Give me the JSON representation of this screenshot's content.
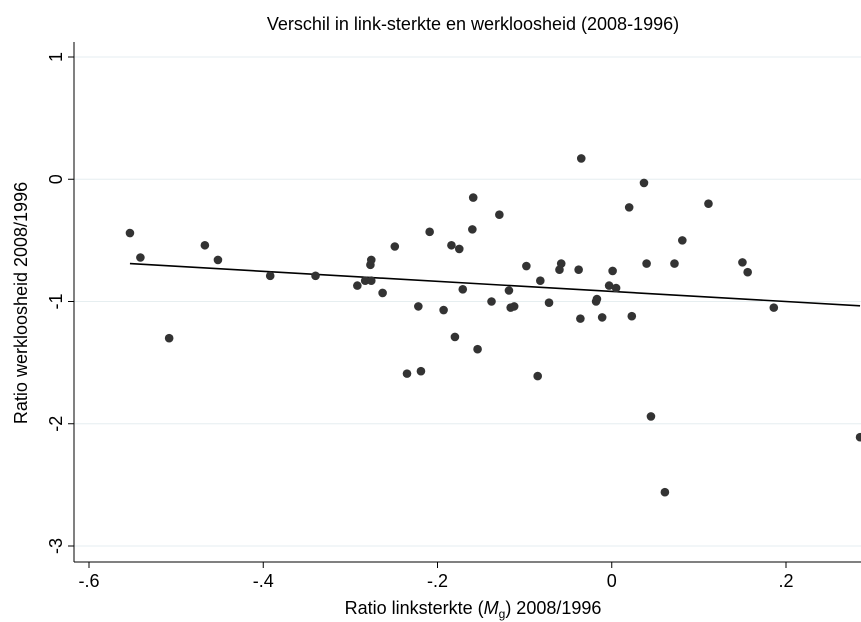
{
  "chart_data": {
    "type": "scatter",
    "title": "Verschil in link-sterkte en werkloosheid (2008-1996)",
    "xlabel_prefix": "Ratio linksterkte (",
    "xlabel_var": "M",
    "xlabel_sub": "g",
    "xlabel_suffix": ") 2008/1996",
    "ylabel": "Ratio werkloosheid 2008/1996",
    "xlim": [
      -0.6,
      0.285
    ],
    "ylim": [
      -3.0,
      1.0
    ],
    "xticks": [
      -0.6,
      -0.4,
      -0.2,
      0,
      0.2
    ],
    "xtick_labels": [
      "-.6",
      "-.4",
      "-.2",
      "0",
      ".2"
    ],
    "yticks": [
      1,
      0,
      -1,
      -2,
      -3
    ],
    "ytick_labels": [
      "1",
      "0",
      "-1",
      "-2",
      "-3"
    ],
    "grid": true,
    "legend": "none",
    "point_color": "#333333",
    "line_color": "#000000",
    "fit_line": {
      "x": [
        -0.553,
        0.285
      ],
      "y": [
        -0.69,
        -1.035
      ]
    },
    "points": [
      {
        "x": -0.553,
        "y": -0.44
      },
      {
        "x": -0.541,
        "y": -0.64
      },
      {
        "x": -0.508,
        "y": -1.3
      },
      {
        "x": -0.467,
        "y": -0.54
      },
      {
        "x": -0.452,
        "y": -0.66
      },
      {
        "x": -0.392,
        "y": -0.79
      },
      {
        "x": -0.34,
        "y": -0.79
      },
      {
        "x": -0.292,
        "y": -0.87
      },
      {
        "x": -0.283,
        "y": -0.83
      },
      {
        "x": -0.277,
        "y": -0.7
      },
      {
        "x": -0.276,
        "y": -0.66
      },
      {
        "x": -0.276,
        "y": -0.83
      },
      {
        "x": -0.263,
        "y": -0.93
      },
      {
        "x": -0.249,
        "y": -0.55
      },
      {
        "x": -0.235,
        "y": -1.59
      },
      {
        "x": -0.222,
        "y": -1.04
      },
      {
        "x": -0.219,
        "y": -1.57
      },
      {
        "x": -0.209,
        "y": -0.43
      },
      {
        "x": -0.193,
        "y": -1.07
      },
      {
        "x": -0.184,
        "y": -0.54
      },
      {
        "x": -0.18,
        "y": -1.29
      },
      {
        "x": -0.175,
        "y": -0.57
      },
      {
        "x": -0.171,
        "y": -0.9
      },
      {
        "x": -0.16,
        "y": -0.41
      },
      {
        "x": -0.159,
        "y": -0.15
      },
      {
        "x": -0.154,
        "y": -1.39
      },
      {
        "x": -0.138,
        "y": -1.0
      },
      {
        "x": -0.129,
        "y": -0.29
      },
      {
        "x": -0.118,
        "y": -0.91
      },
      {
        "x": -0.116,
        "y": -1.05
      },
      {
        "x": -0.112,
        "y": -1.04
      },
      {
        "x": -0.098,
        "y": -0.71
      },
      {
        "x": -0.085,
        "y": -1.61
      },
      {
        "x": -0.082,
        "y": -0.83
      },
      {
        "x": -0.072,
        "y": -1.01
      },
      {
        "x": -0.06,
        "y": -0.74
      },
      {
        "x": -0.058,
        "y": -0.69
      },
      {
        "x": -0.038,
        "y": -0.74
      },
      {
        "x": -0.036,
        "y": -1.14
      },
      {
        "x": -0.035,
        "y": 0.17
      },
      {
        "x": -0.018,
        "y": -1.0
      },
      {
        "x": -0.017,
        "y": -0.98
      },
      {
        "x": -0.011,
        "y": -1.13
      },
      {
        "x": -0.003,
        "y": -0.87
      },
      {
        "x": 0.001,
        "y": -0.75
      },
      {
        "x": 0.005,
        "y": -0.89
      },
      {
        "x": 0.02,
        "y": -0.23
      },
      {
        "x": 0.023,
        "y": -1.12
      },
      {
        "x": 0.037,
        "y": -0.03
      },
      {
        "x": 0.04,
        "y": -0.69
      },
      {
        "x": 0.045,
        "y": -1.94
      },
      {
        "x": 0.061,
        "y": -2.56
      },
      {
        "x": 0.072,
        "y": -0.69
      },
      {
        "x": 0.081,
        "y": -0.5
      },
      {
        "x": 0.111,
        "y": -0.2
      },
      {
        "x": 0.15,
        "y": -0.68
      },
      {
        "x": 0.156,
        "y": -0.76
      },
      {
        "x": 0.186,
        "y": -1.05
      },
      {
        "x": 0.285,
        "y": -2.11
      }
    ]
  }
}
